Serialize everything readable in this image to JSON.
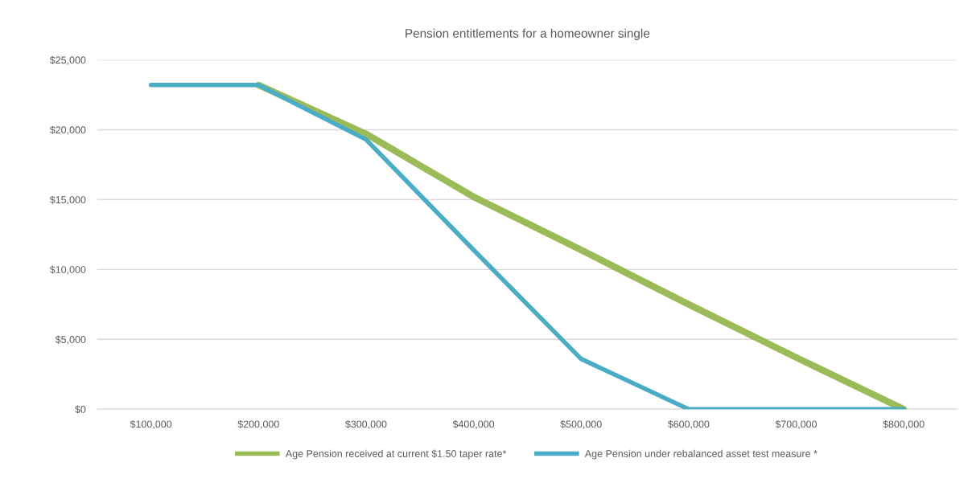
{
  "chart_data": {
    "type": "line",
    "title": "Pension entitlements for a homeowner single",
    "categories": [
      "$100,000",
      "$200,000",
      "$300,000",
      "$400,000",
      "$500,000",
      "$600,000",
      "$700,000",
      "$800,000"
    ],
    "series": [
      {
        "name": "Age Pension received at current $1.50 taper rate*",
        "color": "#9bbb59",
        "values": [
          null,
          23200,
          19700,
          15200,
          11400,
          7500,
          3700,
          0
        ]
      },
      {
        "name": "Age Pension under rebalanced asset test measure *",
        "color": "#4bacc6",
        "values": [
          23200,
          23200,
          19300,
          11400,
          3600,
          0,
          0,
          0
        ]
      }
    ],
    "ylim": [
      0,
      25000
    ],
    "yticks": [
      {
        "value": 0,
        "label": "$0"
      },
      {
        "value": 5000,
        "label": "$5,000"
      },
      {
        "value": 10000,
        "label": "$10,000"
      },
      {
        "value": 15000,
        "label": "$15,000"
      },
      {
        "value": 20000,
        "label": "$20,000"
      },
      {
        "value": 25000,
        "label": "$25,000"
      }
    ],
    "grid": "y",
    "legend": "bottom",
    "marker": "none",
    "line_style": "solid"
  }
}
